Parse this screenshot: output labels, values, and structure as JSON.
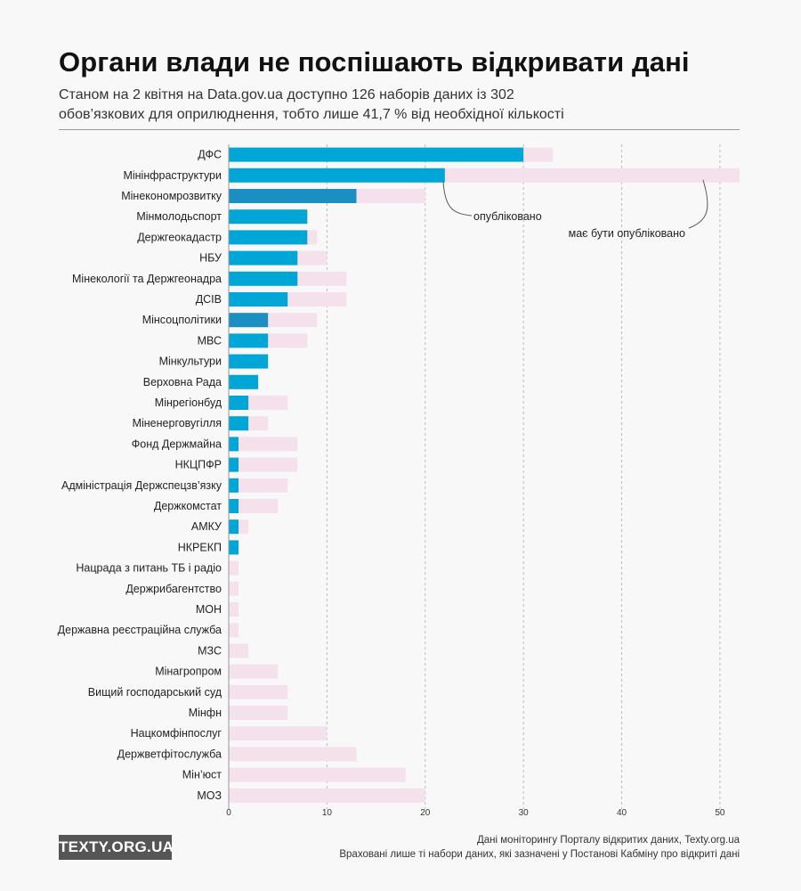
{
  "header": {
    "title": "Органи влади не поспішають відкривати дані",
    "subtitle_line1": "Станом на 2 квітня на Data.gov.ua доступно 126 наборів даних із 302",
    "subtitle_line2": "обов’язкових для оприлюднення, тобто лише 41,7 % від необхідної кількості"
  },
  "colors": {
    "published": "#00a7d6",
    "published_dark": "#1b8fc2",
    "required": "#f5e1ec",
    "grid": "#bbbbbb"
  },
  "chart_data": {
    "type": "bar",
    "orientation": "horizontal",
    "xlim": [
      0,
      52
    ],
    "xticks": [
      0,
      10,
      20,
      30,
      40,
      50
    ],
    "categories": [
      "ДФС",
      "Мінінфраструктури",
      "Мінекономрозвитку",
      "Мінмолодьспорт",
      "Держгеокадастр",
      "НБУ",
      "Мінекології та Держгеонадра",
      "ДСІВ",
      "Мінсоцполітики",
      "МВС",
      "Мінкультури",
      "Верховна Рада",
      "Мінрегіонбуд",
      "Міненерговугілля",
      "Фонд Держмайна",
      "НКЦПФР",
      "Адміністрація Держспецзв’язку",
      "Держкомстат",
      "АМКУ",
      "НКРЕКП",
      "Нацрада з питань ТБ і радіо",
      "Держрибагентство",
      "МОН",
      "Державна реєстраційна служба",
      "МЗС",
      "Мінагропром",
      "Вищий господарський суд",
      "Мінфн",
      "Нацкомфінпослуг",
      "Держветфітослужба",
      "Мін’юст",
      "МОЗ"
    ],
    "series": [
      {
        "name": "опубліковано",
        "values": [
          30,
          22,
          13,
          8,
          8,
          7,
          7,
          6,
          4,
          4,
          4,
          3,
          2,
          2,
          1,
          1,
          1,
          1,
          1,
          1,
          0,
          0,
          0,
          0,
          0,
          0,
          0,
          0,
          0,
          0,
          0,
          0
        ]
      },
      {
        "name": "має бути опубліковано",
        "values": [
          33,
          52,
          20,
          8,
          9,
          10,
          12,
          12,
          9,
          8,
          4,
          3,
          6,
          4,
          7,
          7,
          6,
          5,
          2,
          1,
          1,
          1,
          1,
          1,
          2,
          5,
          6,
          6,
          10,
          13,
          18,
          20
        ]
      }
    ],
    "annotations": [
      "опубліковано",
      "має бути опубліковано"
    ]
  },
  "footer": {
    "logo": "TEXTY.ORG.UA",
    "source_line1": "Дані моніторингу Порталу відкритих даних, Texty.org.ua",
    "source_line2": "Враховані лише ті набори даних, які зазначені у Постанові Кабміну про відкриті дані"
  }
}
